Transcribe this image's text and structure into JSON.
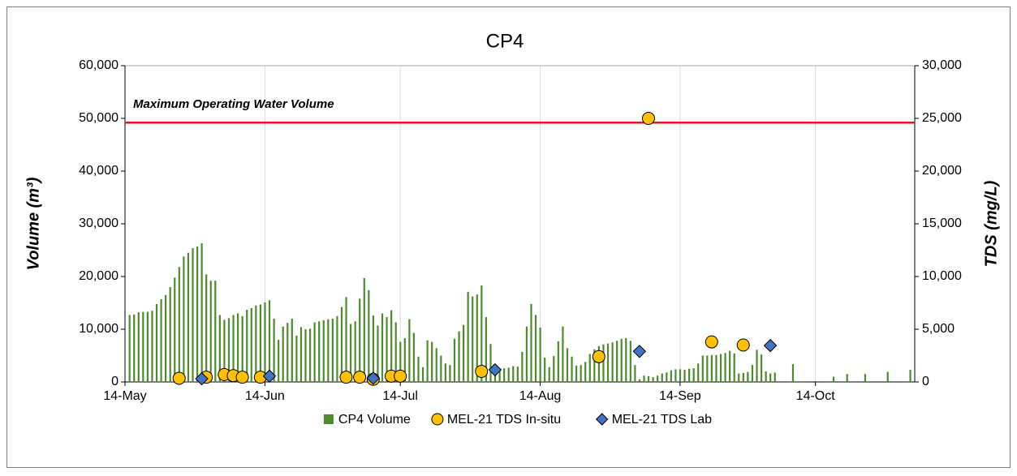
{
  "chart_data": {
    "type": "combo",
    "title": "CP4",
    "ylabel": "Volume (m³)",
    "y2label": "TDS (mg/L)",
    "xlim": [
      "14-May",
      "5-Nov"
    ],
    "xticks": [
      "14-May",
      "14-Jun",
      "14-Jul",
      "14-Aug",
      "14-Sep",
      "14-Oct"
    ],
    "ylim": [
      0,
      60000
    ],
    "yticks": [
      0,
      {
        "value": 10000,
        "label": "10,000"
      },
      {
        "value": 20000,
        "label": "20,000"
      },
      {
        "value": 30000,
        "label": "30,000"
      },
      {
        "value": 40000,
        "label": "40,000"
      },
      {
        "value": 50000,
        "label": "50,000"
      },
      {
        "value": 60000,
        "label": "60,000"
      }
    ],
    "y2lim": [
      0,
      30000
    ],
    "y2ticks": [
      0,
      {
        "value": 5000,
        "label": "5,000"
      },
      {
        "value": 10000,
        "label": "10,000"
      },
      {
        "value": 15000,
        "label": "15,000"
      },
      {
        "value": 20000,
        "label": "20,000"
      },
      {
        "value": 25000,
        "label": "25,000"
      },
      {
        "value": 30000,
        "label": "30,000"
      }
    ],
    "grid": "x",
    "legend": "bottom",
    "reference_line": {
      "value": 49200,
      "label": "Maximum Operating Water Volume",
      "color": "#e8161b"
    },
    "series": [
      {
        "name": "CP4 Volume",
        "type": "bar",
        "color": "#4f8a2e",
        "axis": "y",
        "x": [
          "15-May",
          "16-May",
          "17-May",
          "18-May",
          "19-May",
          "20-May",
          "21-May",
          "22-May",
          "23-May",
          "24-May",
          "25-May",
          "26-May",
          "27-May",
          "28-May",
          "29-May",
          "30-May",
          "31-May",
          "1-Jun",
          "2-Jun",
          "3-Jun",
          "4-Jun",
          "5-Jun",
          "6-Jun",
          "7-Jun",
          "8-Jun",
          "9-Jun",
          "10-Jun",
          "11-Jun",
          "12-Jun",
          "13-Jun",
          "14-Jun",
          "15-Jun",
          "16-Jun",
          "17-Jun",
          "18-Jun",
          "19-Jun",
          "20-Jun",
          "21-Jun",
          "22-Jun",
          "23-Jun",
          "24-Jun",
          "25-Jun",
          "26-Jun",
          "27-Jun",
          "28-Jun",
          "29-Jun",
          "30-Jun",
          "1-Jul",
          "2-Jul",
          "3-Jul",
          "4-Jul",
          "5-Jul",
          "6-Jul",
          "7-Jul",
          "8-Jul",
          "9-Jul",
          "10-Jul",
          "11-Jul",
          "12-Jul",
          "13-Jul",
          "14-Jul",
          "15-Jul",
          "16-Jul",
          "17-Jul",
          "18-Jul",
          "19-Jul",
          "20-Jul",
          "21-Jul",
          "22-Jul",
          "23-Jul",
          "24-Jul",
          "25-Jul",
          "26-Jul",
          "27-Jul",
          "28-Jul",
          "29-Jul",
          "30-Jul",
          "31-Jul",
          "1-Aug",
          "2-Aug",
          "3-Aug",
          "4-Aug",
          "5-Aug",
          "6-Aug",
          "7-Aug",
          "8-Aug",
          "9-Aug",
          "10-Aug",
          "11-Aug",
          "12-Aug",
          "13-Aug",
          "14-Aug",
          "15-Aug",
          "16-Aug",
          "17-Aug",
          "18-Aug",
          "19-Aug",
          "20-Aug",
          "21-Aug",
          "22-Aug",
          "23-Aug",
          "24-Aug",
          "25-Aug",
          "26-Aug",
          "27-Aug",
          "28-Aug",
          "29-Aug",
          "30-Aug",
          "31-Aug",
          "1-Sep",
          "2-Sep",
          "3-Sep",
          "4-Sep",
          "5-Sep",
          "6-Sep",
          "7-Sep",
          "8-Sep",
          "9-Sep",
          "10-Sep",
          "11-Sep",
          "12-Sep",
          "13-Sep",
          "14-Sep",
          "15-Sep",
          "16-Sep",
          "17-Sep",
          "18-Sep",
          "19-Sep",
          "20-Sep",
          "21-Sep",
          "22-Sep",
          "23-Sep",
          "24-Sep",
          "25-Sep",
          "26-Sep",
          "27-Sep",
          "28-Sep",
          "29-Sep",
          "30-Sep",
          "1-Oct",
          "2-Oct",
          "3-Oct",
          "4-Oct",
          "5-Oct",
          "9-Oct",
          "18-Oct",
          "21-Oct",
          "25-Oct",
          "30-Oct",
          "4-Nov"
        ],
        "values": [
          12700,
          12800,
          13200,
          13300,
          13300,
          13500,
          14800,
          15700,
          16500,
          18000,
          19800,
          21800,
          23800,
          24500,
          25400,
          25700,
          26300,
          20400,
          19200,
          19200,
          12700,
          11800,
          12100,
          12700,
          13000,
          12500,
          13700,
          14000,
          14500,
          14700,
          15100,
          15500,
          12000,
          8000,
          10500,
          11200,
          12000,
          8800,
          10400,
          10000,
          10100,
          11300,
          11500,
          11700,
          11900,
          12000,
          12500,
          14200,
          16100,
          11000,
          11500,
          15800,
          19700,
          17400,
          12600,
          10700,
          13000,
          12300,
          13600,
          11300,
          7600,
          8300,
          11900,
          9300,
          4800,
          2800,
          7900,
          7600,
          6400,
          5000,
          3500,
          3200,
          8200,
          9600,
          10800,
          17100,
          16200,
          16600,
          18300,
          12300,
          7200,
          2500,
          2500,
          2600,
          2700,
          3000,
          2900,
          5700,
          10500,
          14800,
          12700,
          10300,
          4600,
          2800,
          4900,
          7700,
          10500,
          6400,
          4800,
          3100,
          3200,
          3800,
          5300,
          6200,
          6800,
          7100,
          7300,
          7500,
          7800,
          8200,
          8300,
          7800,
          3200,
          500,
          1200,
          1100,
          900,
          1200,
          1600,
          1800,
          2200,
          2400,
          2400,
          2300,
          2500,
          2600,
          3500,
          5000,
          5000,
          5100,
          5100,
          5300,
          5500,
          5900,
          5400,
          1600,
          1700,
          1900,
          3200,
          6100,
          5200,
          2000,
          1600,
          1800,
          3400,
          1000,
          1500,
          1500,
          1900,
          2300
        ]
      },
      {
        "name": "MEL-21 TDS In-situ",
        "type": "circle",
        "color": "#ffc000",
        "axis": "y2",
        "x": [
          "26-May",
          "1-Jun",
          "5-Jun",
          "7-Jun",
          "9-Jun",
          "13-Jun",
          "2-Jul",
          "5-Jul",
          "8-Jul",
          "12-Jul",
          "14-Jul",
          "1-Aug",
          "27-Aug",
          "7-Sep",
          "21-Sep",
          "28-Sep"
        ],
        "values": [
          350,
          450,
          700,
          600,
          450,
          450,
          450,
          450,
          250,
          550,
          550,
          1000,
          2400,
          25000,
          3800,
          3500
        ]
      },
      {
        "name": "MEL-21 TDS Lab",
        "type": "diamond",
        "color": "#4472c4",
        "axis": "y2",
        "x": [
          "31-May",
          "15-Jun",
          "8-Jul",
          "4-Aug",
          "5-Sep",
          "4-Oct"
        ],
        "values": [
          300,
          550,
          350,
          1150,
          2900,
          3450
        ]
      }
    ]
  }
}
